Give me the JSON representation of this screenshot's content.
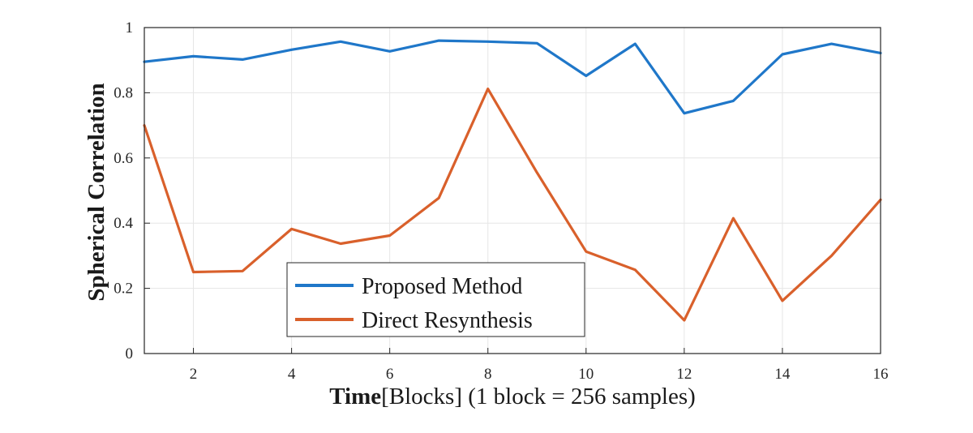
{
  "chart_data": {
    "type": "line",
    "xlabel_bold": "Time",
    "xlabel_rest": "[Blocks] (1 block = 256 samples)",
    "ylabel": "Spherical Correlation",
    "xlim": [
      1,
      16
    ],
    "ylim": [
      0,
      1
    ],
    "x_ticks": [
      2,
      4,
      6,
      8,
      10,
      12,
      14,
      16
    ],
    "y_ticks": [
      0,
      0.2,
      0.4,
      0.6,
      0.8,
      1
    ],
    "y_tick_labels": [
      "0",
      "0.2",
      "0.4",
      "0.6",
      "0.8",
      "1"
    ],
    "grid": true,
    "legend_position": "bottom-left",
    "x": [
      1,
      2,
      3,
      4,
      5,
      6,
      7,
      8,
      9,
      10,
      11,
      12,
      13,
      14,
      15,
      16
    ],
    "series": [
      {
        "name": "Proposed Method",
        "color": "#1f77c9",
        "values": [
          0.895,
          0.912,
          0.902,
          0.932,
          0.957,
          0.927,
          0.96,
          0.957,
          0.952,
          0.852,
          0.95,
          0.737,
          0.775,
          0.918,
          0.95,
          0.922
        ]
      },
      {
        "name": "Direct Resynthesis",
        "color": "#d9602b",
        "values": [
          0.7,
          0.25,
          0.253,
          0.382,
          0.337,
          0.362,
          0.477,
          0.812,
          0.555,
          0.313,
          0.257,
          0.102,
          0.415,
          0.162,
          0.3,
          0.472
        ]
      }
    ]
  }
}
